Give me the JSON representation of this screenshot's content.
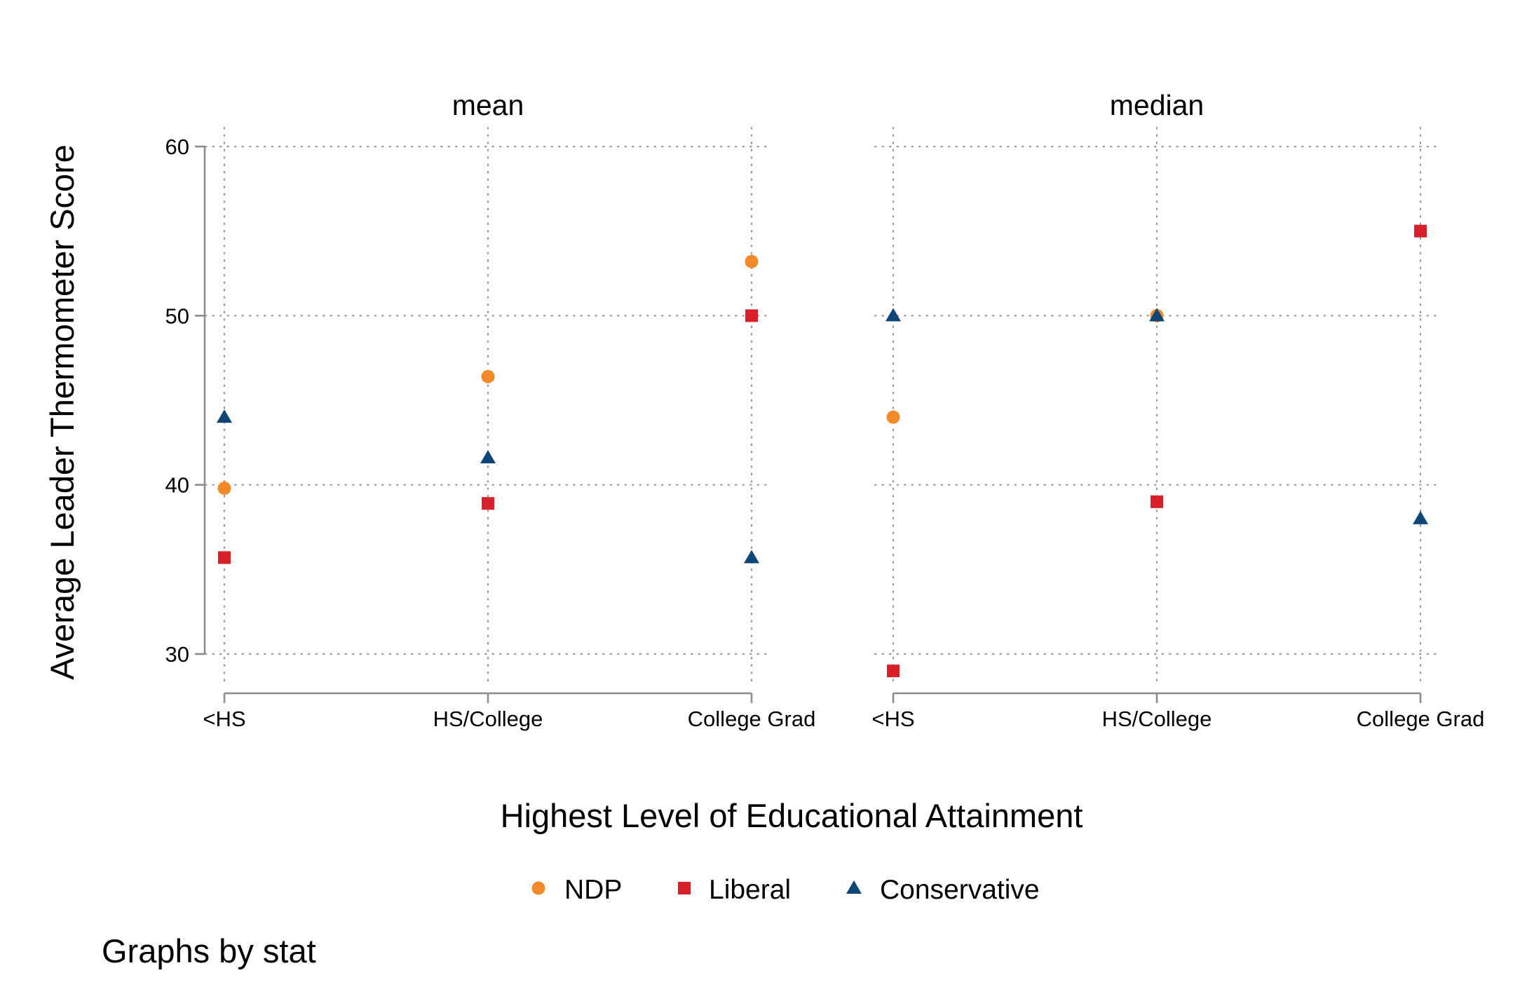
{
  "chart_data": {
    "type": "scatter",
    "ylabel": "Average Leader Thermometer Score",
    "xlabel": "Highest Level of Educational Attainment",
    "note": "Graphs by stat",
    "categories": [
      "<HS",
      "HS/College",
      "College Grad"
    ],
    "ylim": [
      28,
      61
    ],
    "yticks": [
      30,
      40,
      50,
      60
    ],
    "grid": true,
    "legend": {
      "position": "bottom",
      "items": [
        {
          "name": "NDP",
          "marker": "circle",
          "color": "#f28a2a"
        },
        {
          "name": "Liberal",
          "marker": "square",
          "color": "#d7202a"
        },
        {
          "name": "Conservative",
          "marker": "triangle",
          "color": "#0e4678"
        }
      ]
    },
    "panels": [
      {
        "title": "mean",
        "series": [
          {
            "name": "NDP",
            "values": [
              39.8,
              46.4,
              53.2
            ]
          },
          {
            "name": "Liberal",
            "values": [
              35.7,
              38.9,
              50.0
            ]
          },
          {
            "name": "Conservative",
            "values": [
              44.0,
              41.6,
              35.7
            ]
          }
        ]
      },
      {
        "title": "median",
        "series": [
          {
            "name": "NDP",
            "values": [
              44.0,
              50.0,
              null
            ]
          },
          {
            "name": "Liberal",
            "values": [
              29.0,
              39.0,
              55.0
            ]
          },
          {
            "name": "Conservative",
            "values": [
              50.0,
              50.0,
              38.0
            ]
          }
        ]
      }
    ]
  }
}
